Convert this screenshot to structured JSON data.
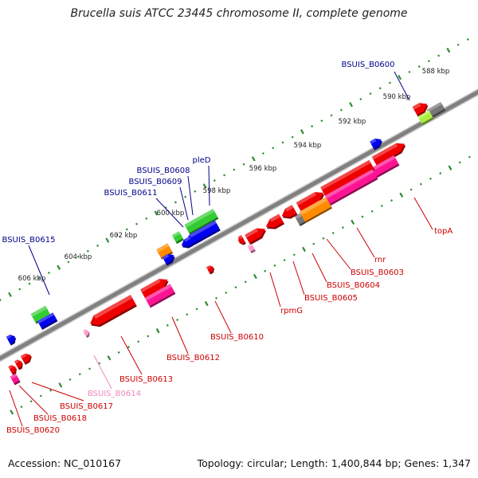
{
  "title": "Brucella suis ATCC 23445 chromosome II, complete genome",
  "footer": {
    "accession": "Accession: NC_010167",
    "topology": "Topology: circular; Length: 1,400,844 bp; Genes: 1,347"
  },
  "colors": {
    "backbone": "#808080",
    "tick": "#2e8b2e",
    "label_top": "#00008b",
    "label_bottom": "#cc0000",
    "label_pink": "#ee88bb",
    "red": "#ee0000",
    "blue": "#0000ee",
    "green": "#33cc33",
    "orange": "#ff8c00",
    "magenta": "#ff1493",
    "pink": "#ff99cc",
    "gray": "#777777",
    "lime": "#aaee44"
  },
  "ruler": {
    "labels": [
      "588 kbp",
      "590 kbp",
      "592 kbp",
      "594 kbp",
      "596 kbp",
      "598 kbp",
      "600 kbp",
      "602 kbp",
      "604 kbp",
      "606 kbp"
    ]
  },
  "gene_labels": [
    {
      "text": "BSUIS_B0600",
      "color": "top"
    },
    {
      "text": "pleD",
      "color": "top"
    },
    {
      "text": "BSUIS_B0608",
      "color": "top"
    },
    {
      "text": "BSUIS_B0609",
      "color": "top"
    },
    {
      "text": "BSUIS_B0611",
      "color": "top"
    },
    {
      "text": "BSUIS_B0615",
      "color": "top"
    },
    {
      "text": "topA",
      "color": "bottom"
    },
    {
      "text": "rnr",
      "color": "bottom"
    },
    {
      "text": "BSUIS_B0603",
      "color": "bottom"
    },
    {
      "text": "BSUIS_B0604",
      "color": "bottom"
    },
    {
      "text": "BSUIS_B0605",
      "color": "bottom"
    },
    {
      "text": "rpmG",
      "color": "bottom"
    },
    {
      "text": "BSUIS_B0610",
      "color": "bottom"
    },
    {
      "text": "BSUIS_B0612",
      "color": "bottom"
    },
    {
      "text": "BSUIS_B0613",
      "color": "bottom"
    },
    {
      "text": "BSUIS_B0614",
      "color": "pink"
    },
    {
      "text": "BSUIS_B0617",
      "color": "bottom"
    },
    {
      "text": "BSUIS_B0618",
      "color": "bottom"
    },
    {
      "text": "BSUIS_B0620",
      "color": "bottom"
    }
  ]
}
